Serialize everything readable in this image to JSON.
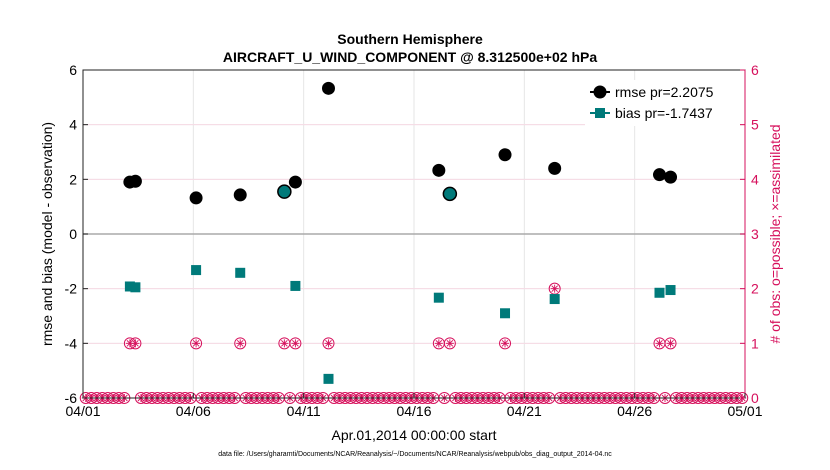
{
  "chart_data": {
    "type": "scatter",
    "title": "Southern Hemisphere",
    "subtitle": "AIRCRAFT_U_WIND_COMPONENT @ 8.312500e+02 hPa",
    "xlabel": "Apr.01,2014 00:00:00 start",
    "ylabel": "rmse and bias (model - observation)",
    "y2label": "# of obs: o=possible; ×=assimilated",
    "footnote": "data file: /Users/gharamti/Documents/NCAR/Reanalysis/~/Documents/NCAR/Reanalysis/webpub/obs_diag_output_2014-04.nc",
    "x_tick_labels": [
      "04/01",
      "04/06",
      "04/11",
      "04/16",
      "04/21",
      "04/26",
      "05/01"
    ],
    "x_tick_days": [
      0,
      5,
      10,
      15,
      20,
      25,
      30
    ],
    "xlim": [
      0,
      30
    ],
    "ylim": [
      -6,
      6
    ],
    "y_ticks": [
      -6,
      -4,
      -2,
      0,
      2,
      4,
      6
    ],
    "y2lim": [
      0,
      6
    ],
    "y2_ticks": [
      0,
      1,
      2,
      3,
      4,
      5,
      6
    ],
    "grid": true,
    "legend_position": "top-right",
    "colors": {
      "rmse": "#000000",
      "bias": "#007a7a",
      "obs": "#d6105c",
      "zero_line": "#aaaaaa",
      "grid": "#e6e6e6"
    },
    "series": [
      {
        "name": "rmse pr=2.2075",
        "axis": "left",
        "marker": "circle",
        "x": [
          2.125,
          2.375,
          5.125,
          7.125,
          9.125,
          9.625,
          11.125,
          16.125,
          16.625,
          19.125,
          21.375,
          26.125,
          26.625
        ],
        "y": [
          1.9,
          1.93,
          1.32,
          1.43,
          1.55,
          1.9,
          5.33,
          2.33,
          1.47,
          2.9,
          2.4,
          2.17,
          2.08
        ]
      },
      {
        "name": "bias pr=-1.7437",
        "axis": "left",
        "marker": "square",
        "x": [
          2.125,
          2.375,
          5.125,
          7.125,
          9.125,
          9.625,
          11.125,
          16.125,
          16.625,
          19.125,
          21.375,
          26.125,
          26.625
        ],
        "y": [
          -1.92,
          -1.95,
          -1.32,
          -1.42,
          1.55,
          -1.9,
          -5.3,
          -2.33,
          1.47,
          -2.9,
          -2.38,
          -2.15,
          -2.05
        ]
      },
      {
        "name": "obs count",
        "axis": "right",
        "marker": "circle-star",
        "x": [
          2.125,
          2.375,
          5.125,
          7.125,
          9.125,
          9.625,
          11.125,
          16.125,
          16.625,
          19.125,
          21.375,
          26.125,
          26.625
        ],
        "possible": [
          1,
          1,
          1,
          1,
          1,
          1,
          1,
          1,
          1,
          1,
          2,
          1,
          1
        ],
        "assimilated": [
          1,
          1,
          1,
          1,
          1,
          1,
          1,
          1,
          1,
          1,
          2,
          1,
          1
        ]
      }
    ],
    "zero_count_bin_width_days": 0.25
  }
}
